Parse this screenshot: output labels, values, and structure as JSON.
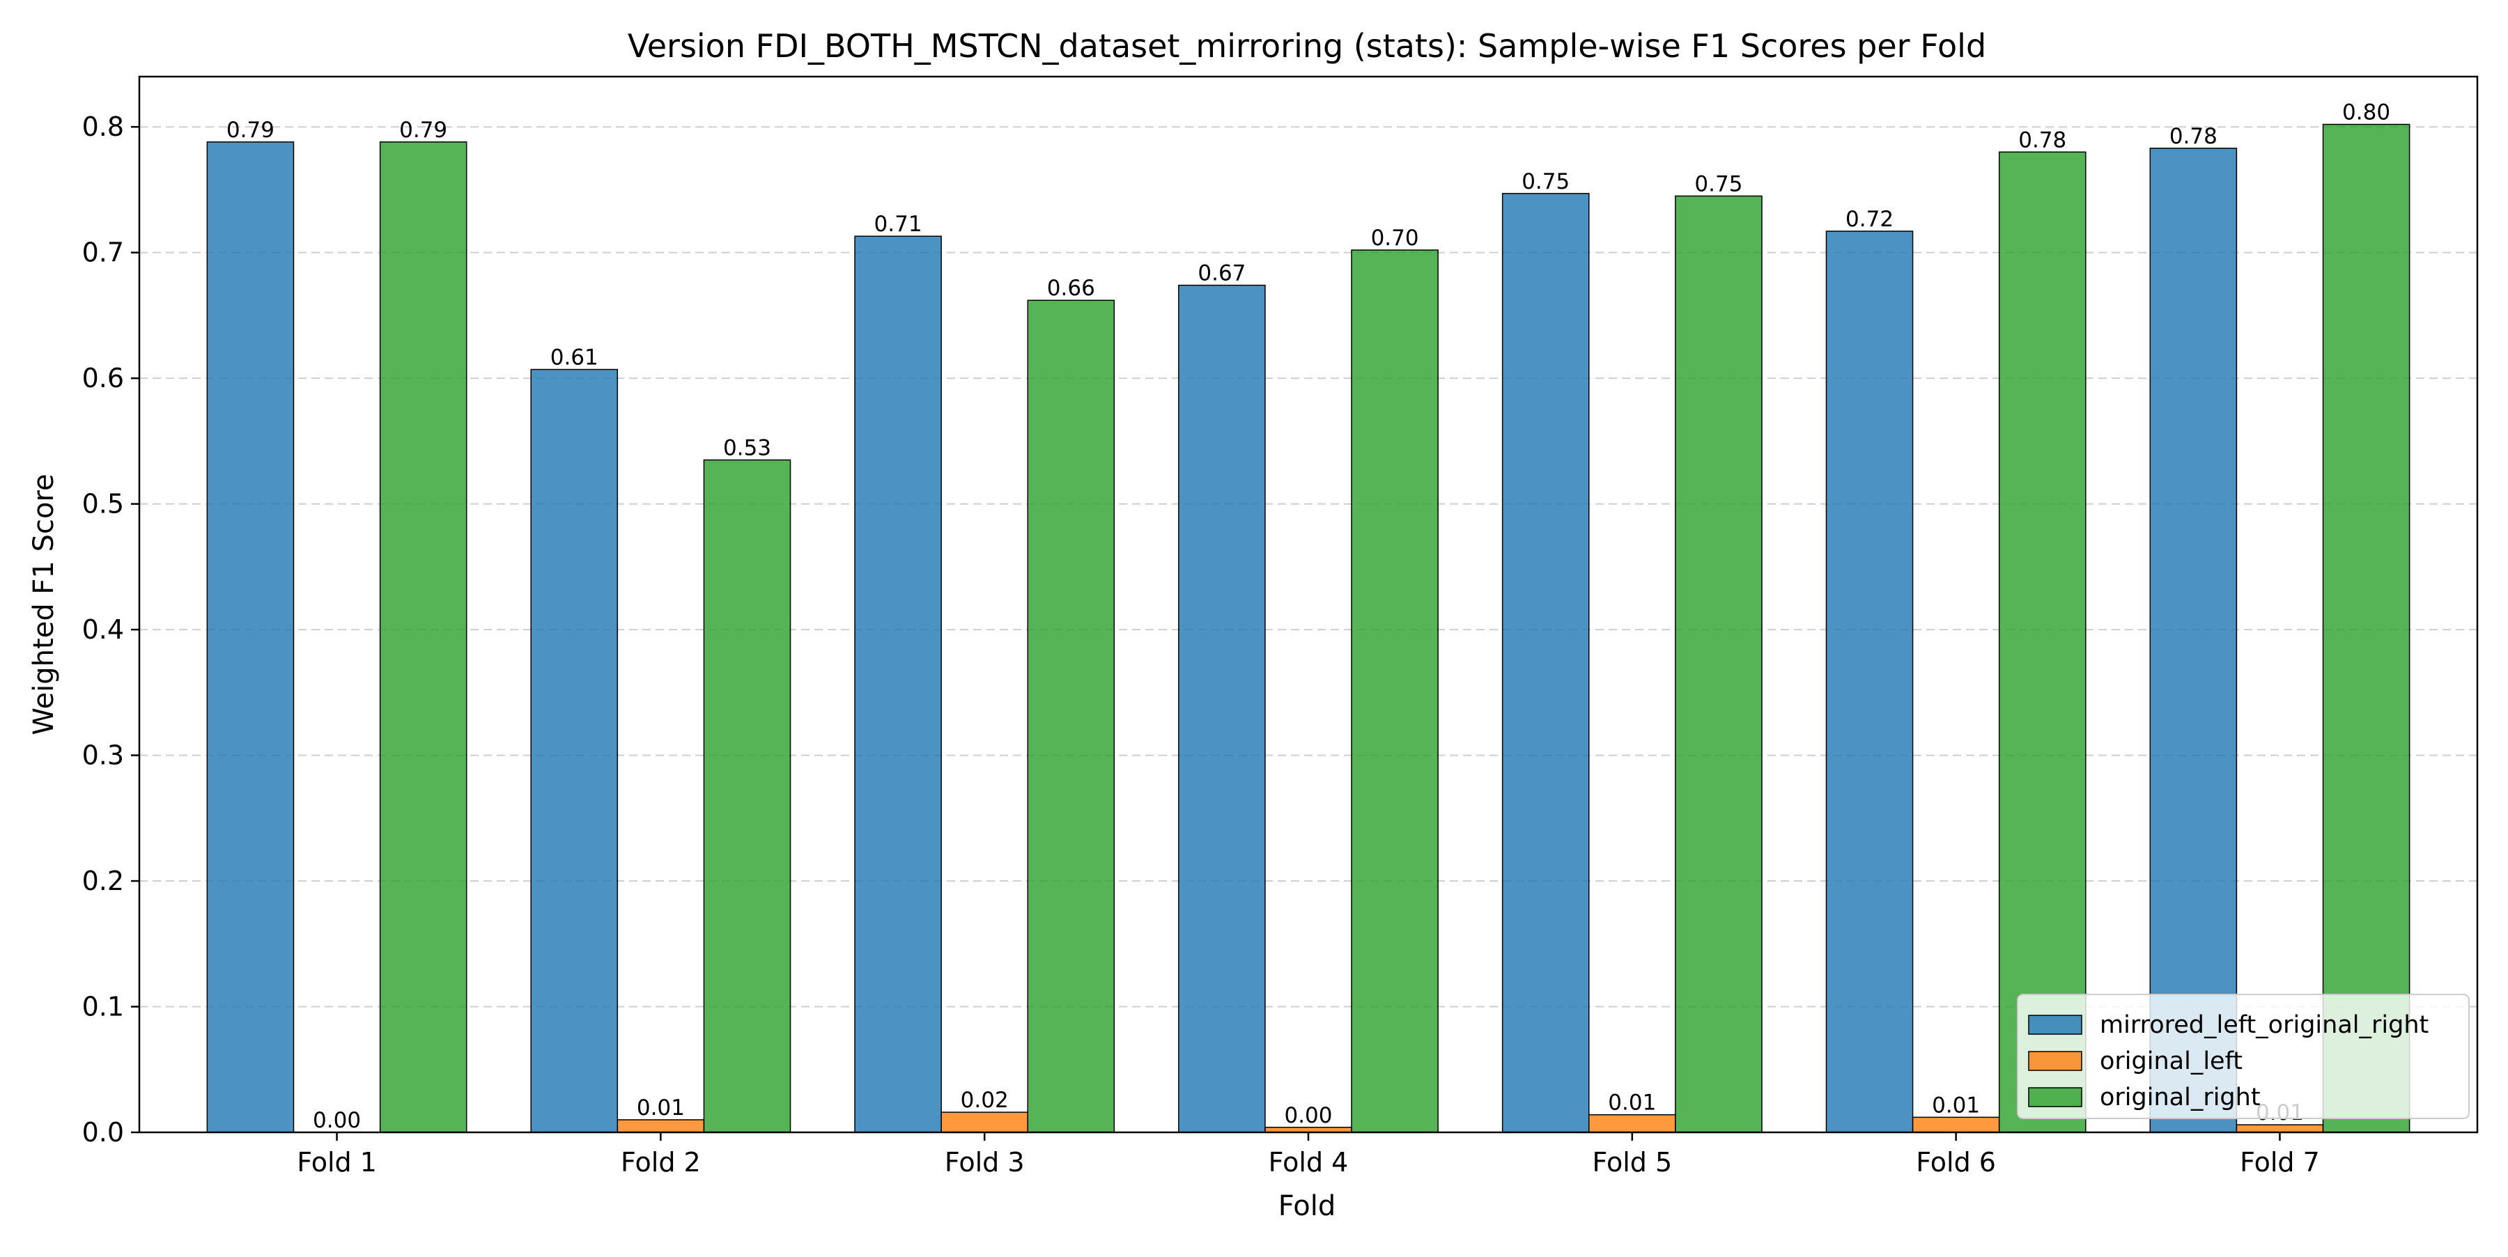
{
  "chart_data": {
    "type": "bar",
    "title": "Version FDI_BOTH_MSTCN_dataset_mirroring (stats): Sample-wise F1 Scores per Fold",
    "xlabel": "Fold",
    "ylabel": "Weighted F1 Score",
    "categories": [
      "Fold 1",
      "Fold 2",
      "Fold 3",
      "Fold 4",
      "Fold 5",
      "Fold 6",
      "Fold 7"
    ],
    "ylim": [
      0,
      0.84
    ],
    "yticks": [
      0.0,
      0.1,
      0.2,
      0.3,
      0.4,
      0.5,
      0.6,
      0.7,
      0.8
    ],
    "ytick_labels": [
      "0.0",
      "0.1",
      "0.2",
      "0.3",
      "0.4",
      "0.5",
      "0.6",
      "0.7",
      "0.8"
    ],
    "grid": "y-dashed",
    "legend_position": "lower-right",
    "series": [
      {
        "name": "mirrored_left_original_right",
        "color": "#1f77b4",
        "values": [
          0.788,
          0.607,
          0.713,
          0.674,
          0.747,
          0.717,
          0.783
        ],
        "labels": [
          "0.79",
          "0.61",
          "0.71",
          "0.67",
          "0.75",
          "0.72",
          "0.78"
        ]
      },
      {
        "name": "original_left",
        "color": "#ff7f0e",
        "values": [
          0.0,
          0.01,
          0.016,
          0.004,
          0.014,
          0.012,
          0.006
        ],
        "labels": [
          "0.00",
          "0.01",
          "0.02",
          "0.00",
          "0.01",
          "0.01",
          "0.01"
        ]
      },
      {
        "name": "original_right",
        "color": "#2ca02c",
        "values": [
          0.788,
          0.535,
          0.662,
          0.702,
          0.745,
          0.78,
          0.802
        ],
        "labels": [
          "0.79",
          "0.53",
          "0.66",
          "0.70",
          "0.75",
          "0.78",
          "0.80"
        ]
      }
    ]
  }
}
